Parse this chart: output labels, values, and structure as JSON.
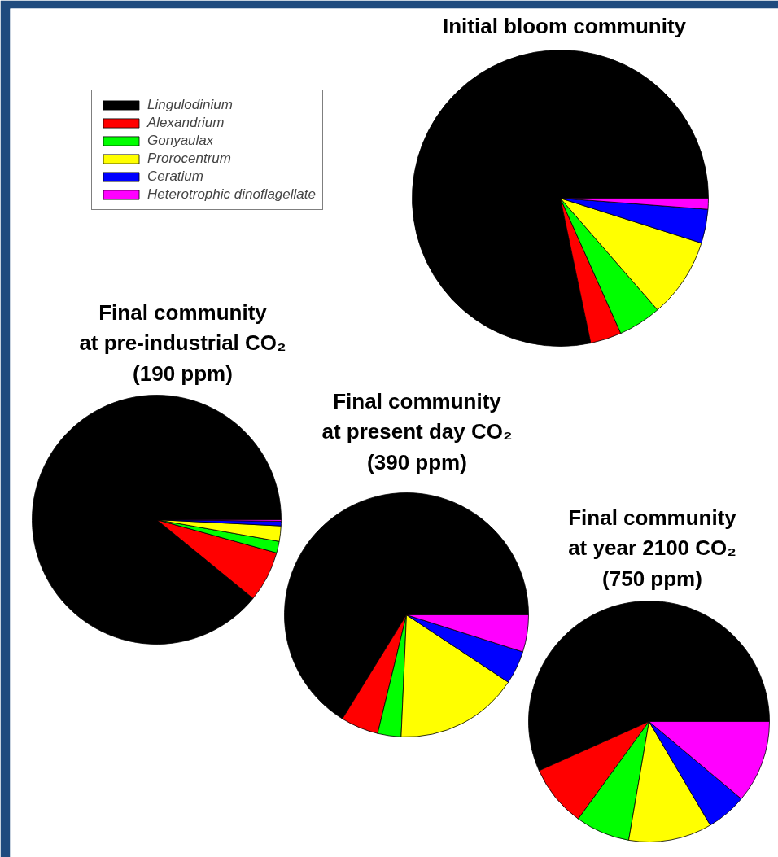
{
  "chart_data": [
    {
      "type": "pie",
      "title": "Initial bloom community",
      "legend": "top left",
      "categories": [
        "Lingulodinium",
        "Alexandrium",
        "Gonyaulax",
        "Prorocentrum",
        "Ceratium",
        "Heterotrophic dinoflagellate"
      ],
      "values": [
        78.3,
        3.4,
        4.7,
        8.7,
        3.7,
        1.2
      ],
      "colors": [
        "#000000",
        "#ff0000",
        "#00ff00",
        "#ffff00",
        "#0000ff",
        "#ff00ff"
      ]
    },
    {
      "type": "pie",
      "title": "Final community\nat pre-industrial CO₂\n(190 ppm)",
      "categories": [
        null,
        null,
        null,
        null,
        null,
        null
      ],
      "values": [
        89.1,
        6.6,
        1.5,
        2.0,
        0.6,
        0.2
      ],
      "colors": [
        "#000000",
        "#ff0000",
        "#00ff00",
        "#ffff00",
        "#0000ff",
        "#ff00ff"
      ]
    },
    {
      "type": "pie",
      "title": "Final community\nat present day CO₂\n(390 ppm)",
      "categories": [
        null,
        null,
        null,
        null,
        null,
        null
      ],
      "values": [
        66.2,
        5.0,
        3.1,
        16.4,
        4.4,
        4.9
      ],
      "colors": [
        "#000000",
        "#ff0000",
        "#00ff00",
        "#ffff00",
        "#0000ff",
        "#ff00ff"
      ]
    },
    {
      "type": "pie",
      "title": "Final community\nat year 2100 CO₂\n(750 ppm)",
      "categories": [
        null,
        null,
        null,
        null,
        null,
        null
      ],
      "values": [
        56.7,
        8.3,
        7.3,
        11.2,
        5.4,
        11.1
      ],
      "colors": [
        "#000000",
        "#ff0000",
        "#00ff00",
        "#ffff00",
        "#0000ff",
        "#ff00ff"
      ]
    }
  ]
}
